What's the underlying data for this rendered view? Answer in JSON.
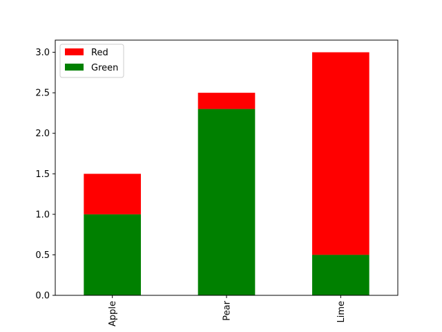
{
  "chart_data": {
    "type": "bar",
    "stacked": true,
    "categories": [
      "Apple",
      "Pear",
      "Lime"
    ],
    "series": [
      {
        "name": "Green",
        "values": [
          1.0,
          2.3,
          0.5
        ],
        "color": "#008000"
      },
      {
        "name": "Red",
        "values": [
          0.5,
          0.2,
          2.5
        ],
        "color": "#ff0000"
      }
    ],
    "title": "",
    "xlabel": "",
    "ylabel": "",
    "ylim": [
      0,
      3.15
    ],
    "yticks": [
      "0.0",
      "0.5",
      "1.0",
      "1.5",
      "2.0",
      "2.5",
      "3.0"
    ],
    "x_tick_rotation": "vertical",
    "grid": false,
    "legend": {
      "position": "upper-left",
      "entries": [
        "Red",
        "Green"
      ]
    }
  }
}
